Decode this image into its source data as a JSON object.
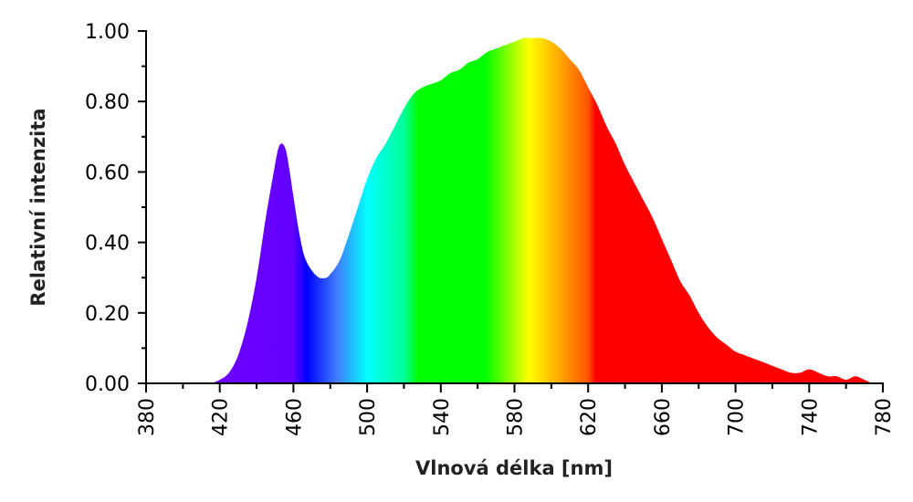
{
  "chart_data": {
    "type": "area",
    "title": "",
    "xlabel": "Vlnová délka [nm]",
    "ylabel": "Relativní intenzita",
    "xlim": [
      380,
      780
    ],
    "ylim": [
      0,
      1
    ],
    "x_ticks": [
      380,
      420,
      460,
      500,
      540,
      580,
      620,
      660,
      700,
      740,
      780
    ],
    "x_tick_labels": [
      "380",
      "420",
      "460",
      "500",
      "540",
      "580",
      "620",
      "660",
      "700",
      "740",
      "780"
    ],
    "y_ticks": [
      0,
      0.2,
      0.4,
      0.6,
      0.8,
      1.0
    ],
    "y_tick_labels": [
      "0.00",
      "0.20",
      "0.40",
      "0.60",
      "0.80",
      "1.00"
    ],
    "grid": false,
    "fill": "visible-spectrum gradient",
    "series": [
      {
        "x": [
          415,
          420,
          425,
          430,
          435,
          440,
          445,
          450,
          452,
          454,
          456,
          458,
          460,
          463,
          466,
          470,
          474,
          478,
          480,
          483,
          486,
          490,
          495,
          500,
          505,
          510,
          515,
          520,
          525,
          530,
          535,
          540,
          545,
          550,
          555,
          560,
          565,
          570,
          575,
          580,
          585,
          590,
          595,
          600,
          605,
          610,
          615,
          620,
          625,
          630,
          635,
          640,
          645,
          650,
          655,
          660,
          665,
          670,
          675,
          680,
          685,
          690,
          695,
          700,
          705,
          710,
          715,
          720,
          725,
          730,
          735,
          740,
          745,
          750,
          755,
          760,
          765,
          770,
          775,
          780
        ],
        "y": [
          0.0,
          0.01,
          0.03,
          0.08,
          0.17,
          0.3,
          0.47,
          0.62,
          0.67,
          0.68,
          0.66,
          0.6,
          0.53,
          0.43,
          0.36,
          0.32,
          0.3,
          0.3,
          0.31,
          0.33,
          0.36,
          0.42,
          0.5,
          0.58,
          0.64,
          0.68,
          0.73,
          0.78,
          0.82,
          0.84,
          0.85,
          0.86,
          0.88,
          0.89,
          0.91,
          0.92,
          0.94,
          0.95,
          0.96,
          0.97,
          0.98,
          0.98,
          0.98,
          0.97,
          0.95,
          0.92,
          0.89,
          0.84,
          0.79,
          0.73,
          0.68,
          0.62,
          0.57,
          0.52,
          0.47,
          0.41,
          0.35,
          0.29,
          0.25,
          0.2,
          0.16,
          0.13,
          0.11,
          0.09,
          0.08,
          0.07,
          0.06,
          0.05,
          0.04,
          0.03,
          0.03,
          0.04,
          0.03,
          0.02,
          0.02,
          0.01,
          0.02,
          0.01,
          0.0,
          0.0
        ]
      }
    ]
  }
}
